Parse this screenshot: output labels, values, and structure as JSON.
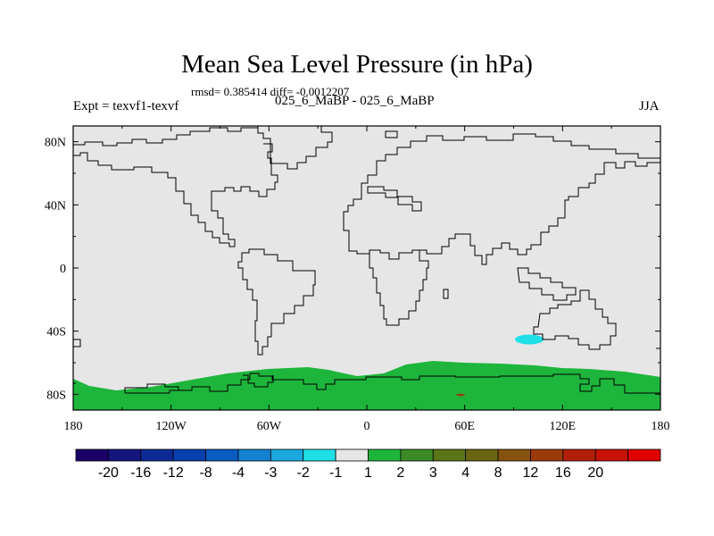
{
  "title": "Mean Sea Level Pressure (in hPa)",
  "stats": "rmsd= 0.385414 diff= -0.0012207",
  "expt": "Expt = texvf1-texvf",
  "subtitle": "025_6_MaBP - 025_6_MaBP",
  "season": "JJA",
  "map": {
    "ocean_color": "#e6e6e6",
    "lat_ticks": [
      "80N",
      "40N",
      "0",
      "40S",
      "80S"
    ],
    "lon_ticks": [
      "180",
      "120W",
      "60W",
      "0",
      "60E",
      "120E",
      "180"
    ],
    "lat_values": [
      80,
      40,
      0,
      -40,
      -80
    ],
    "lon_values": [
      -180,
      -120,
      -60,
      0,
      60,
      120,
      180
    ],
    "lon_range": [
      -180,
      180
    ],
    "lat_range": [
      -90,
      90
    ]
  },
  "colorbar": {
    "colors": [
      "#1a0066",
      "#15167d",
      "#0d2a94",
      "#063fae",
      "#0a5cc0",
      "#1282d0",
      "#19a9de",
      "#1fe0e6",
      "#e6e6e6",
      "#1eb53c",
      "#3b8a25",
      "#5a7418",
      "#6a6512",
      "#85520f",
      "#9c3a0c",
      "#b21f08",
      "#c81205",
      "#e00000"
    ],
    "labels": [
      "-20",
      "-16",
      "-12",
      "-8",
      "-4",
      "-3",
      "-2",
      "-1",
      "1",
      "2",
      "3",
      "4",
      "8",
      "12",
      "16",
      "20"
    ]
  },
  "features": {
    "positive_band_color": "#1eb53c",
    "negative_spot_color": "#1fe0e6"
  }
}
